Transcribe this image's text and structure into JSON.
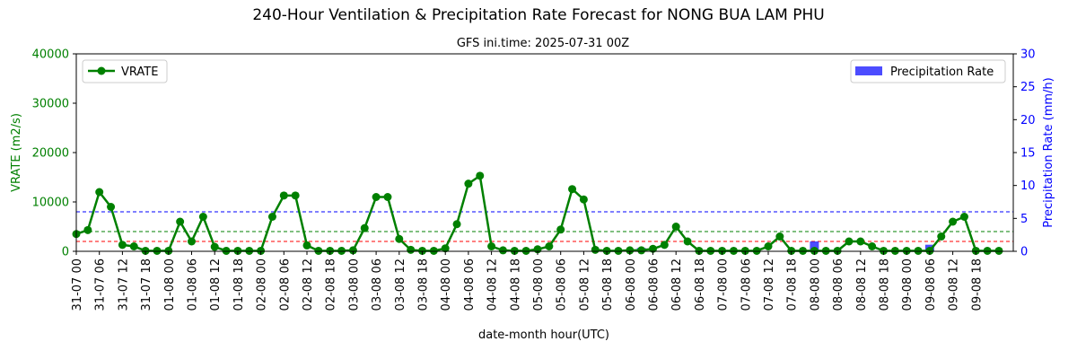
{
  "chart_data": {
    "type": "line",
    "title": "240-Hour Ventilation & Precipitation Rate Forecast for NONG BUA LAM PHU",
    "subtitle": "GFS ini.time: 2025-07-31 00Z",
    "xlabel": "date-month hour(UTC)",
    "ylabel_left": "VRATE (m2/s)",
    "ylabel_right": "Precipitation Rate (mm/h)",
    "ylim_left": [
      0,
      40000
    ],
    "ylim_right": [
      0,
      30
    ],
    "yticks_left": [
      "0",
      "10000",
      "20000",
      "30000",
      "40000"
    ],
    "yticks_right": [
      "0",
      "5",
      "10",
      "15",
      "20",
      "25",
      "30"
    ],
    "x_tick_labels": [
      "31-07 00",
      "31-07 06",
      "31-07 12",
      "31-07 18",
      "01-08 00",
      "01-08 06",
      "01-08 12",
      "01-08 18",
      "02-08 00",
      "02-08 06",
      "02-08 12",
      "02-08 18",
      "03-08 00",
      "03-08 06",
      "03-08 12",
      "03-08 18",
      "04-08 00",
      "04-08 06",
      "04-08 12",
      "04-08 18",
      "05-08 00",
      "05-08 06",
      "05-08 12",
      "05-08 18",
      "06-08 00",
      "06-08 06",
      "06-08 12",
      "06-08 18",
      "07-08 00",
      "07-08 06",
      "07-08 12",
      "07-08 18",
      "08-08 00",
      "08-08 06",
      "08-08 12",
      "08-08 18",
      "09-08 00",
      "09-08 06",
      "09-08 12",
      "09-08 18"
    ],
    "x_step_hours": 3,
    "series": [
      {
        "name": "VRATE",
        "axis": "left",
        "color": "#008000",
        "values": [
          3500,
          4300,
          12000,
          9000,
          1300,
          1000,
          100,
          100,
          100,
          6000,
          2000,
          7000,
          900,
          100,
          100,
          100,
          100,
          7000,
          11300,
          11300,
          1200,
          100,
          100,
          100,
          200,
          4700,
          11000,
          11000,
          2500,
          300,
          100,
          100,
          600,
          5500,
          13700,
          15300,
          1000,
          200,
          100,
          100,
          400,
          1000,
          4400,
          12600,
          10500,
          300,
          100,
          100,
          200,
          200,
          500,
          1300,
          5000,
          2000,
          100,
          100,
          100,
          100,
          100,
          100,
          1000,
          3000,
          100,
          100,
          100,
          100,
          100,
          2000,
          2000,
          1000,
          100,
          100,
          100,
          100,
          100,
          3000,
          6000,
          7000,
          100,
          100,
          100
        ]
      },
      {
        "name": "Precipitation Rate",
        "axis": "right",
        "color": "#0000ff",
        "values": [
          0,
          0,
          0,
          0,
          0,
          0,
          0,
          0,
          0,
          0,
          0,
          0,
          0,
          0,
          0,
          0,
          0,
          0,
          0,
          0,
          0,
          0,
          0,
          0,
          0,
          0,
          0,
          0,
          0,
          0,
          0,
          0,
          0,
          0,
          0,
          0,
          0,
          0,
          0,
          0,
          0,
          0,
          0,
          0,
          0,
          0,
          0,
          0,
          0,
          0.5,
          0,
          0,
          0,
          0,
          0,
          0,
          0,
          0,
          0,
          0,
          0,
          0,
          0,
          0,
          1.5,
          0,
          0,
          0,
          0,
          0,
          0,
          0,
          0,
          0,
          1.0,
          0,
          0,
          0,
          0,
          0,
          0
        ]
      }
    ],
    "reference_lines": [
      {
        "axis": "left",
        "value": 2000,
        "color": "#ff0000"
      },
      {
        "axis": "left",
        "value": 4000,
        "color": "#008000"
      },
      {
        "axis": "left",
        "value": 8000,
        "color": "#0000ff"
      }
    ],
    "legend_left": "top-left",
    "legend_right": "top-right",
    "grid": false
  }
}
